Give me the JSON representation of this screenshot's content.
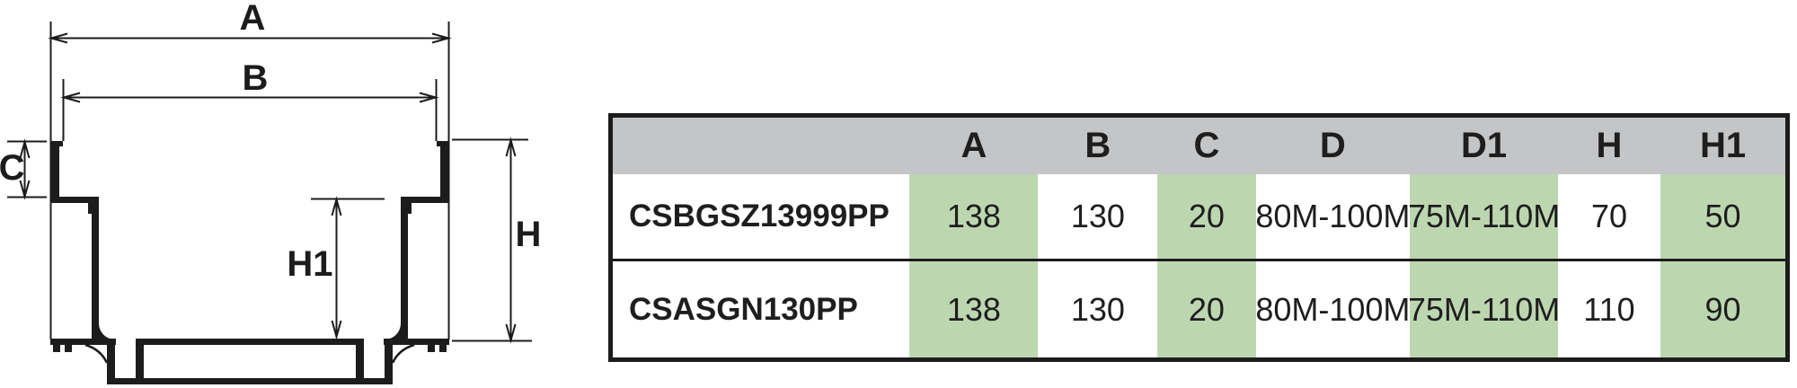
{
  "page": {
    "background": "#ffffff"
  },
  "diagram": {
    "labels": {
      "A": "A",
      "B": "B",
      "C": "C",
      "H": "H",
      "H1": "H1"
    }
  },
  "table": {
    "columns": [
      {
        "label": "",
        "highlight": false
      },
      {
        "label": "A",
        "highlight": true
      },
      {
        "label": "B",
        "highlight": false
      },
      {
        "label": "C",
        "highlight": true
      },
      {
        "label": "D",
        "highlight": false
      },
      {
        "label": "D1",
        "highlight": true
      },
      {
        "label": "H",
        "highlight": false
      },
      {
        "label": "H1",
        "highlight": true
      }
    ],
    "rows": [
      {
        "name": "CSBGSZ13999PP",
        "values": [
          "138",
          "130",
          "20",
          "80M-100M",
          "75M-110M",
          "70",
          "50"
        ]
      },
      {
        "name": "CSASGN130PP",
        "values": [
          "138",
          "130",
          "20",
          "80M-100M",
          "75M-110M",
          "110",
          "90"
        ]
      }
    ],
    "colors": {
      "header_bg": "#c4c5c7",
      "highlight_bg": "#bcd7b0",
      "border": "#1c1c1c",
      "text": "#1e1e1e"
    }
  }
}
